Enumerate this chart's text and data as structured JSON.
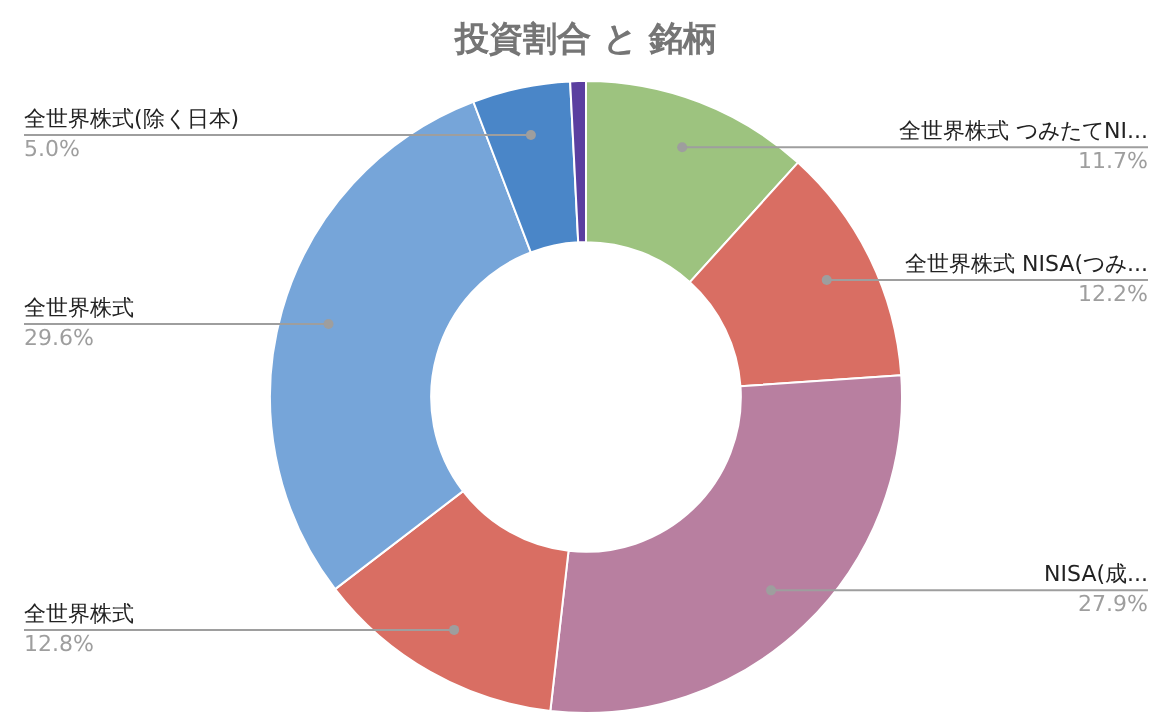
{
  "chart_data": {
    "type": "donut",
    "title": "投資割合 と 銘柄",
    "categories": [
      "全世界株式 つみたてNI...",
      "全世界株式 NISA(つみ...",
      "NISA(成...",
      "全世界株式",
      "全世界株式",
      "全世界株式(除く日本)",
      null
    ],
    "values": [
      11.7,
      12.2,
      27.9,
      12.8,
      29.6,
      5.0,
      0.8
    ],
    "colors": [
      "#9dc37f",
      "#d96e63",
      "#b87fa0",
      "#d96e63",
      "#76a5d9",
      "#4a86c8",
      "#5b3fa0"
    ],
    "value_labels": [
      "11.7%",
      "12.2%",
      "27.9%",
      "12.8%",
      "29.6%",
      "5.0%",
      null
    ]
  }
}
